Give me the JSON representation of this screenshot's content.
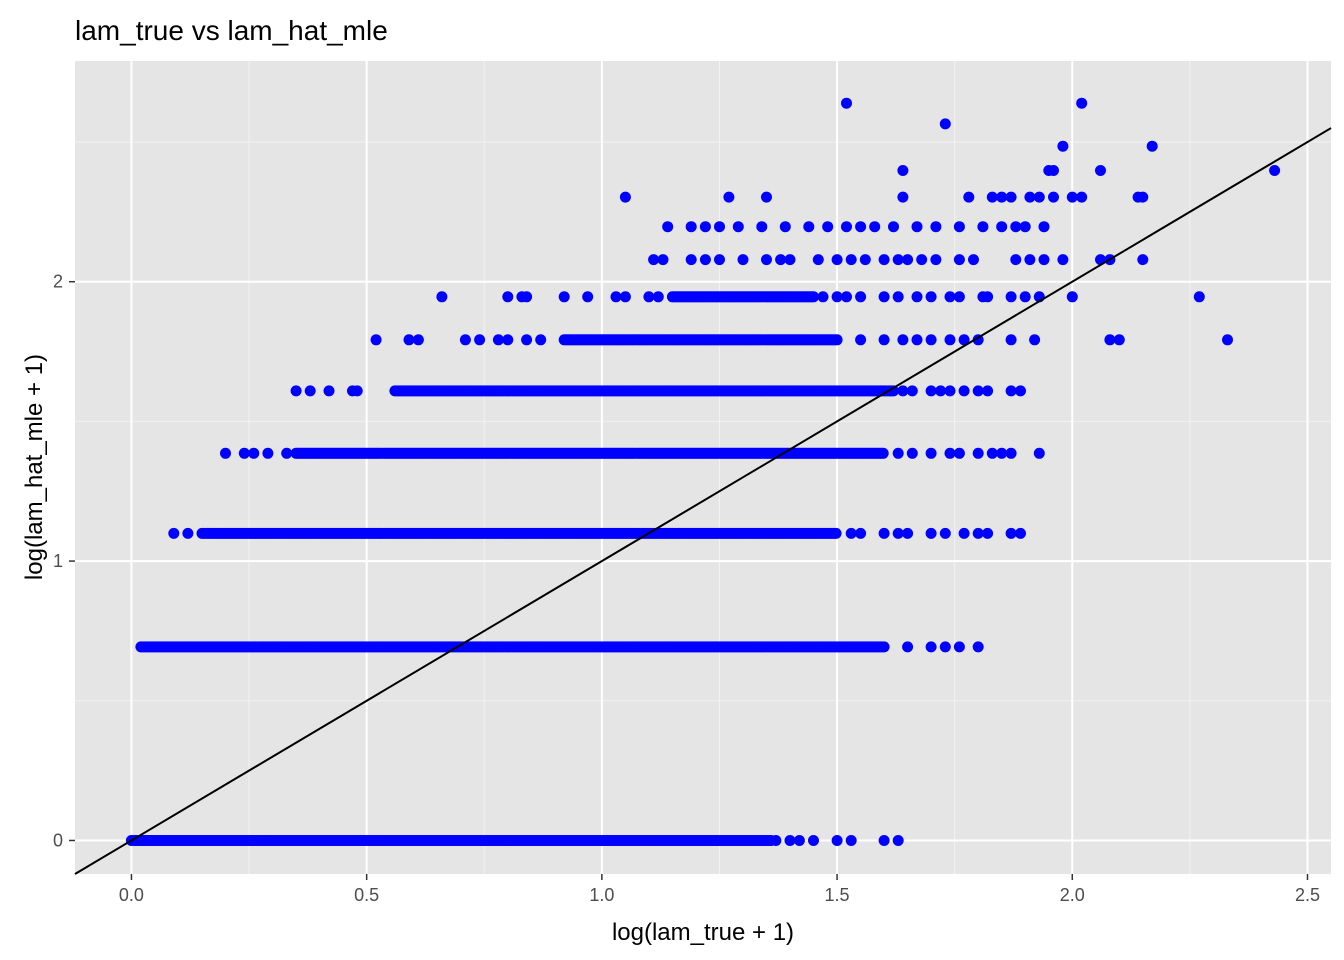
{
  "chart_data": {
    "type": "scatter",
    "title": "lam_true vs lam_hat_mle",
    "xlabel": "log(lam_true + 1)",
    "ylabel": "log(lam_hat_mle + 1)",
    "xlim": [
      -0.12,
      2.55
    ],
    "ylim": [
      -0.12,
      2.79
    ],
    "x_ticks": [
      0.0,
      0.5,
      1.0,
      1.5,
      2.0,
      2.5
    ],
    "x_tick_labels": [
      "0.0",
      "0.5",
      "1.0",
      "1.5",
      "2.0",
      "2.5"
    ],
    "y_ticks": [
      0,
      1,
      2
    ],
    "y_tick_labels": [
      "0",
      "1",
      "2"
    ],
    "grid": true,
    "legend": "none",
    "point_color": "#0000ff",
    "panel_background": "#e5e5e5",
    "grid_color": "#ffffff",
    "reference_line": {
      "slope": 1,
      "intercept": 0,
      "color": "#000000"
    },
    "bands": [
      {
        "y": 0.0,
        "x_dense": [
          0.0,
          1.36
        ],
        "x_sparse": [
          1.37,
          1.4,
          1.42,
          1.45,
          1.5,
          1.53,
          1.6,
          1.63
        ]
      },
      {
        "y": 0.693,
        "x_dense": [
          0.02,
          1.6
        ],
        "x_sparse": [
          1.65,
          1.7,
          1.73,
          1.76,
          1.8
        ]
      },
      {
        "y": 1.099,
        "x_dense": [
          0.15,
          1.5
        ],
        "x_sparse": [
          0.09,
          0.12,
          1.53,
          1.55,
          1.6,
          1.63,
          1.65,
          1.7,
          1.73,
          1.77,
          1.8,
          1.82,
          1.87,
          1.89
        ]
      },
      {
        "y": 1.386,
        "x_dense": [
          0.35,
          1.6
        ],
        "x_sparse": [
          0.2,
          0.24,
          0.26,
          0.29,
          0.33,
          1.63,
          1.66,
          1.7,
          1.74,
          1.76,
          1.8,
          1.83,
          1.85,
          1.87,
          1.93
        ]
      },
      {
        "y": 1.609,
        "x_dense": [
          0.56,
          1.62
        ],
        "x_sparse": [
          0.35,
          0.38,
          0.42,
          0.47,
          0.48,
          1.64,
          1.66,
          1.7,
          1.72,
          1.74,
          1.77,
          1.8,
          1.82,
          1.87,
          1.89
        ]
      },
      {
        "y": 1.792,
        "x_dense": [
          0.92,
          1.5
        ],
        "x_sparse": [
          0.52,
          0.59,
          0.61,
          0.71,
          0.74,
          0.78,
          0.8,
          0.84,
          0.87,
          1.55,
          1.6,
          1.64,
          1.67,
          1.7,
          1.74,
          1.77,
          1.8,
          1.87,
          1.92,
          2.08,
          2.1,
          2.33
        ]
      },
      {
        "y": 1.946,
        "x_dense": [
          1.15,
          1.45
        ],
        "x_sparse": [
          0.66,
          0.8,
          0.83,
          0.84,
          0.92,
          0.97,
          1.03,
          1.05,
          1.1,
          1.12,
          1.47,
          1.5,
          1.52,
          1.55,
          1.6,
          1.63,
          1.67,
          1.7,
          1.74,
          1.76,
          1.81,
          1.82,
          1.87,
          1.9,
          1.93,
          2.0,
          2.27
        ]
      },
      {
        "y": 2.079,
        "x_dense": [],
        "x_sparse": [
          1.11,
          1.13,
          1.19,
          1.22,
          1.25,
          1.3,
          1.35,
          1.38,
          1.4,
          1.46,
          1.5,
          1.53,
          1.56,
          1.6,
          1.63,
          1.65,
          1.68,
          1.71,
          1.76,
          1.79,
          1.88,
          1.91,
          1.94,
          1.98,
          2.06,
          2.08,
          2.15
        ]
      },
      {
        "y": 2.197,
        "x_dense": [],
        "x_sparse": [
          1.14,
          1.19,
          1.22,
          1.25,
          1.29,
          1.34,
          1.39,
          1.44,
          1.48,
          1.52,
          1.55,
          1.58,
          1.62,
          1.67,
          1.71,
          1.76,
          1.81,
          1.85,
          1.88,
          1.9,
          1.94
        ]
      },
      {
        "y": 2.303,
        "x_dense": [],
        "x_sparse": [
          1.05,
          1.27,
          1.35,
          1.64,
          1.78,
          1.83,
          1.85,
          1.87,
          1.91,
          1.93,
          1.96,
          2.0,
          2.02,
          2.14,
          2.15
        ]
      },
      {
        "y": 2.398,
        "x_dense": [],
        "x_sparse": [
          1.64,
          1.95,
          1.96,
          2.06,
          2.43
        ]
      },
      {
        "y": 2.485,
        "x_dense": [],
        "x_sparse": [
          1.98,
          2.17
        ]
      },
      {
        "y": 2.565,
        "x_dense": [],
        "x_sparse": [
          1.73
        ]
      },
      {
        "y": 2.639,
        "x_dense": [],
        "x_sparse": [
          1.52,
          2.02
        ]
      }
    ]
  }
}
